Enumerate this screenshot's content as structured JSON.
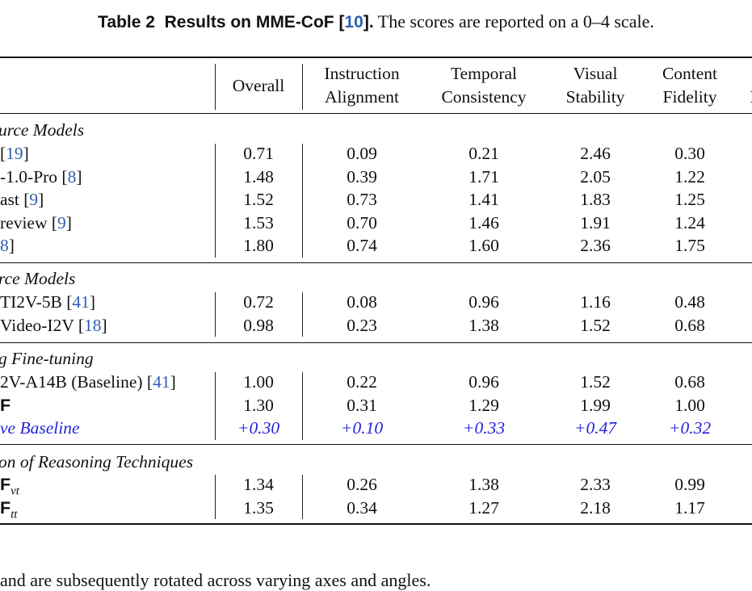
{
  "caption": {
    "label": "Table 2",
    "title": "Results on MME-CoF",
    "cite": "10",
    "punct_close": "].",
    "text": "The scores are reported on a 0–4 scale."
  },
  "headers": {
    "overall": "Overall",
    "instruction": [
      "Instruction",
      "Alignment"
    ],
    "temporal": [
      "Temporal",
      "Consistency"
    ],
    "visual": [
      "Visual",
      "Stability"
    ],
    "content": [
      "Content",
      "Fidelity"
    ],
    "partial": "I"
  },
  "groups": [
    {
      "title": "urce Models",
      "rows": [
        {
          "pre": "[",
          "cite": "19",
          "post": "]",
          "values": [
            "0.71",
            "0.09",
            "0.21",
            "2.46",
            "0.30"
          ]
        },
        {
          "pre": "-1.0-Pro [",
          "cite": "8",
          "post": "]",
          "values": [
            "1.48",
            "0.39",
            "1.71",
            "2.05",
            "1.22"
          ]
        },
        {
          "pre": "ast [",
          "cite": "9",
          "post": "]",
          "values": [
            "1.52",
            "0.73",
            "1.41",
            "1.83",
            "1.25"
          ]
        },
        {
          "pre": "review [",
          "cite": "9",
          "post": "]",
          "values": [
            "1.53",
            "0.70",
            "1.46",
            "1.91",
            "1.24"
          ]
        },
        {
          "pre": "",
          "cite": "8",
          "post": "]",
          "values": [
            "1.80",
            "0.74",
            "1.60",
            "2.36",
            "1.75"
          ]
        }
      ]
    },
    {
      "title": "rce Models",
      "rows": [
        {
          "pre": "TI2V-5B [",
          "cite": "41",
          "post": "]",
          "values": [
            "0.72",
            "0.08",
            "0.96",
            "1.16",
            "0.48"
          ]
        },
        {
          "pre": "Video-I2V [",
          "cite": "18",
          "post": "]",
          "values": [
            "0.98",
            "0.23",
            "1.38",
            "1.52",
            "0.68"
          ]
        }
      ]
    },
    {
      "title": "g Fine-tuning",
      "rows": [
        {
          "pre": "2V-A14B (Baseline) [",
          "cite": "41",
          "post": "]",
          "values": [
            "1.00",
            "0.22",
            "0.96",
            "1.52",
            "0.68"
          ]
        },
        {
          "pre": "F",
          "cite": "",
          "post": "",
          "sans": true,
          "values": [
            "1.30",
            "0.31",
            "1.29",
            "1.99",
            "1.00"
          ]
        },
        {
          "pre": "ve Baseline",
          "cite": "",
          "post": "",
          "delta": true,
          "values": [
            "+0.30",
            "+0.10",
            "+0.33",
            "+0.47",
            "+0.32"
          ]
        }
      ]
    },
    {
      "title": "on of Reasoning Techniques",
      "rows": [
        {
          "pre": "F",
          "cite": "",
          "post": "",
          "sans": true,
          "sub": "vt",
          "values": [
            "1.34",
            "0.26",
            "1.38",
            "2.33",
            "0.99"
          ]
        },
        {
          "pre": "F",
          "cite": "",
          "post": "",
          "sans": true,
          "sub": "tt",
          "values": [
            "1.35",
            "0.34",
            "1.27",
            "2.18",
            "1.17"
          ]
        }
      ]
    }
  ],
  "bottom_text": "and are subsequently rotated across varying axes and angles."
}
